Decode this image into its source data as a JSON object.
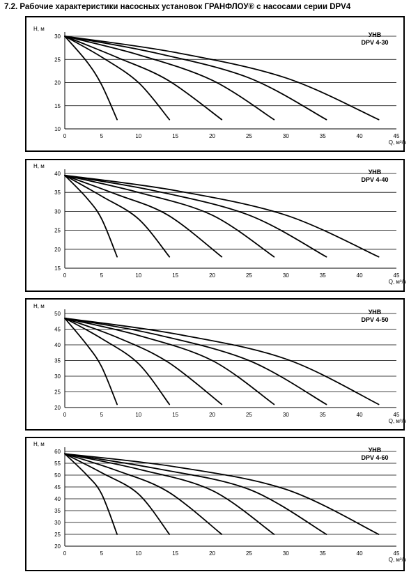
{
  "page_title": "7.2. Рабочие характеристики насосных установок ГРАНФЛОУ® с насосами серии DPV4",
  "chart_data": [
    {
      "type": "line",
      "title": "УНВ DPV 4-30",
      "title_lines": [
        "УНВ",
        "DPV 4-30"
      ],
      "ylabel": "H, м",
      "xlabel": "Q, м³/ч",
      "xlim": [
        0,
        45
      ],
      "ylim": [
        10,
        30
      ],
      "x_ticks": [
        0,
        5,
        10,
        15,
        20,
        25,
        30,
        35,
        40,
        45
      ],
      "y_ticks": [
        10,
        15,
        20,
        25,
        30
      ],
      "grid": true,
      "series": [
        {
          "x": [
            0,
            3,
            5,
            7.1
          ],
          "y": [
            30,
            24.5,
            19.5,
            12
          ]
        },
        {
          "x": [
            0,
            5,
            10,
            14.2
          ],
          "y": [
            30,
            25.5,
            20,
            12
          ]
        },
        {
          "x": [
            0,
            7,
            14,
            21.3
          ],
          "y": [
            30,
            25.5,
            20.5,
            12
          ]
        },
        {
          "x": [
            0,
            10,
            20,
            28.4
          ],
          "y": [
            30,
            26,
            20.5,
            12
          ]
        },
        {
          "x": [
            0,
            12,
            25,
            35.5
          ],
          "y": [
            30,
            26.5,
            21,
            12
          ]
        },
        {
          "x": [
            0,
            15,
            30,
            42.6
          ],
          "y": [
            30,
            26.5,
            21,
            12
          ]
        }
      ]
    },
    {
      "type": "line",
      "title": "УНВ DPV 4-40",
      "title_lines": [
        "УНВ",
        "DPV 4-40"
      ],
      "ylabel": "H, м",
      "xlabel": "Q, м³/ч",
      "xlim": [
        0,
        45
      ],
      "ylim": [
        15,
        40
      ],
      "x_ticks": [
        0,
        5,
        10,
        15,
        20,
        25,
        30,
        35,
        40,
        45
      ],
      "y_ticks": [
        15,
        20,
        25,
        30,
        35,
        40
      ],
      "grid": true,
      "series": [
        {
          "x": [
            0,
            3,
            5,
            7.1
          ],
          "y": [
            39.5,
            33.5,
            28,
            18
          ]
        },
        {
          "x": [
            0,
            5,
            10,
            14.2
          ],
          "y": [
            39.5,
            34,
            28,
            18
          ]
        },
        {
          "x": [
            0,
            7,
            14,
            21.3
          ],
          "y": [
            39.5,
            34.5,
            29,
            18
          ]
        },
        {
          "x": [
            0,
            10,
            20,
            28.4
          ],
          "y": [
            39.5,
            35,
            29,
            18
          ]
        },
        {
          "x": [
            0,
            12,
            25,
            35.5
          ],
          "y": [
            39.5,
            35.5,
            29,
            18
          ]
        },
        {
          "x": [
            0,
            15,
            30,
            42.6
          ],
          "y": [
            39.5,
            35.5,
            29,
            18
          ]
        }
      ]
    },
    {
      "type": "line",
      "title": "УНВ DPV 4-50",
      "title_lines": [
        "УНВ",
        "DPV 4-50"
      ],
      "ylabel": "H, м",
      "xlabel": "Q, м³/ч",
      "xlim": [
        0,
        45
      ],
      "ylim": [
        20,
        50
      ],
      "x_ticks": [
        0,
        5,
        10,
        15,
        20,
        25,
        30,
        35,
        40,
        45
      ],
      "y_ticks": [
        20,
        25,
        30,
        35,
        40,
        45,
        50
      ],
      "grid": true,
      "series": [
        {
          "x": [
            0,
            3,
            5,
            7.1
          ],
          "y": [
            48.5,
            40,
            33,
            21
          ]
        },
        {
          "x": [
            0,
            5,
            10,
            14.2
          ],
          "y": [
            48.5,
            42,
            34,
            21
          ]
        },
        {
          "x": [
            0,
            7,
            14,
            21.3
          ],
          "y": [
            48.5,
            42.5,
            34.5,
            21
          ]
        },
        {
          "x": [
            0,
            10,
            20,
            28.4
          ],
          "y": [
            48.5,
            43,
            35,
            21
          ]
        },
        {
          "x": [
            0,
            12,
            25,
            35.5
          ],
          "y": [
            48.5,
            43.5,
            35,
            21
          ]
        },
        {
          "x": [
            0,
            15,
            30,
            42.6
          ],
          "y": [
            48.5,
            43.5,
            35.5,
            21
          ]
        }
      ]
    },
    {
      "type": "line",
      "title": "УНВ DPV 4-60",
      "title_lines": [
        "УНВ",
        "DPV 4-60"
      ],
      "ylabel": "H, м",
      "xlabel": "Q, м³/ч",
      "xlim": [
        0,
        45
      ],
      "ylim": [
        20,
        60
      ],
      "x_ticks": [
        0,
        5,
        10,
        15,
        20,
        25,
        30,
        35,
        40,
        45
      ],
      "y_ticks": [
        20,
        25,
        30,
        35,
        40,
        45,
        50,
        55,
        60
      ],
      "grid": true,
      "series": [
        {
          "x": [
            0,
            3,
            5,
            7.1
          ],
          "y": [
            59,
            50,
            42,
            25
          ]
        },
        {
          "x": [
            0,
            5,
            10,
            14.2
          ],
          "y": [
            59,
            51,
            42,
            25
          ]
        },
        {
          "x": [
            0,
            7,
            14,
            21.3
          ],
          "y": [
            59,
            52,
            43,
            25
          ]
        },
        {
          "x": [
            0,
            10,
            20,
            28.4
          ],
          "y": [
            59,
            52.5,
            43.5,
            25
          ]
        },
        {
          "x": [
            0,
            12,
            25,
            35.5
          ],
          "y": [
            59,
            53,
            44,
            25
          ]
        },
        {
          "x": [
            0,
            15,
            30,
            42.6
          ],
          "y": [
            59,
            53.5,
            44,
            25
          ]
        }
      ]
    }
  ]
}
